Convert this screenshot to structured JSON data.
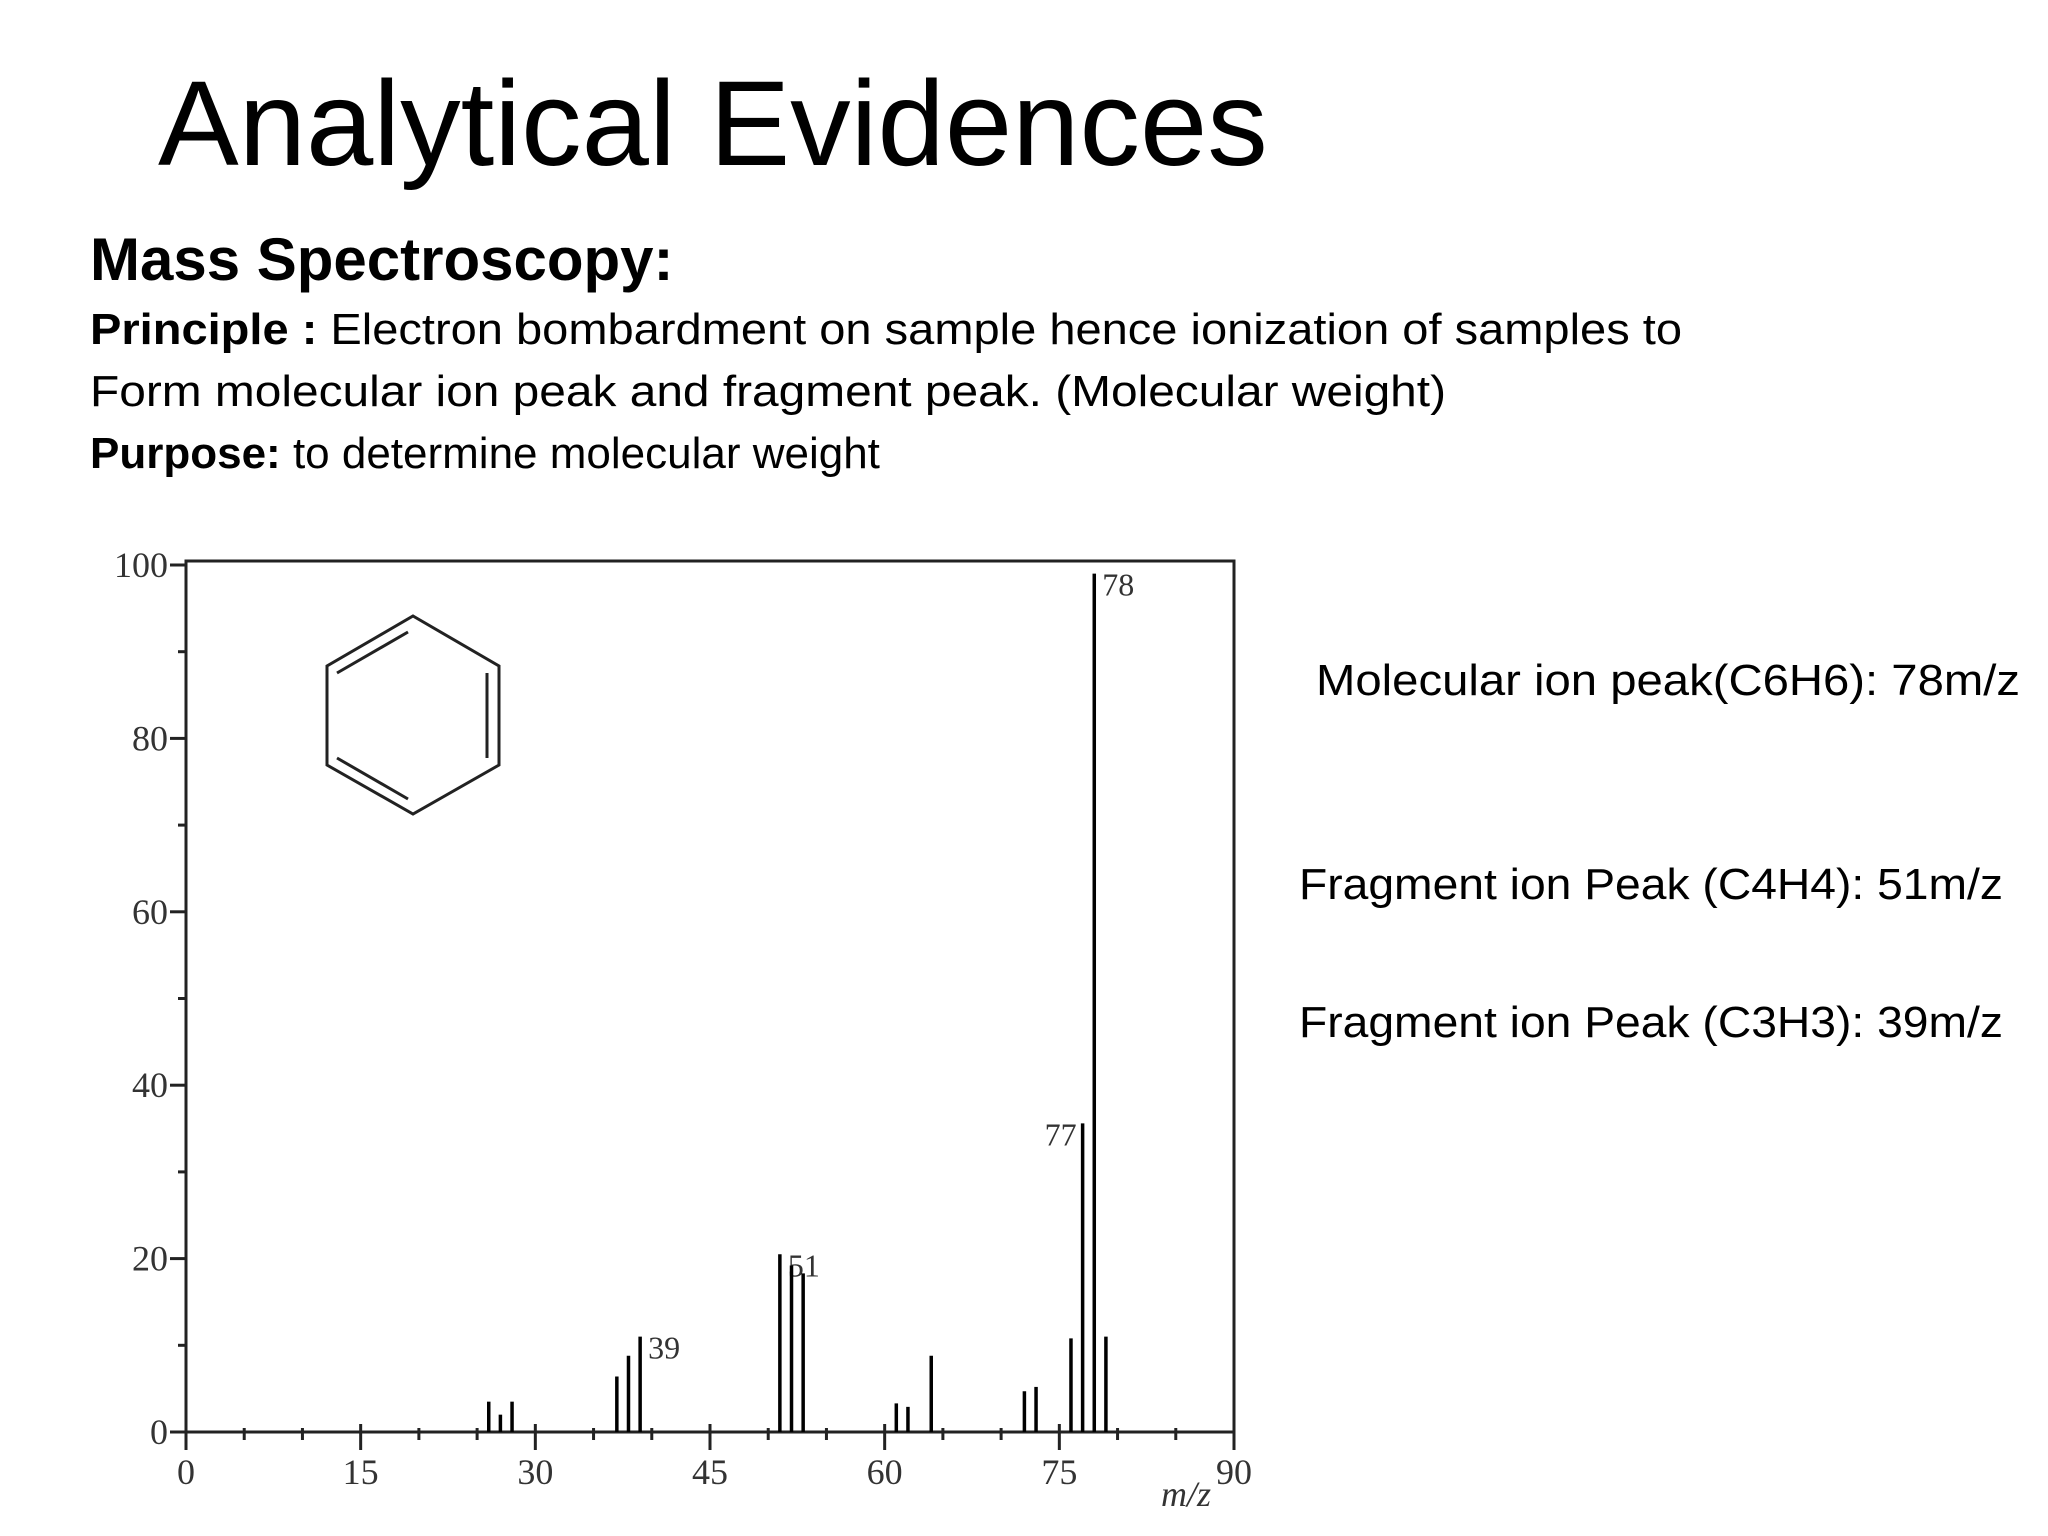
{
  "title": "Analytical Evidences",
  "section": "Mass Spectroscopy:",
  "principle": {
    "label": "Principle :",
    "text": "Electron bombardment on sample hence ionization of samples to",
    "text2": "Form molecular ion peak and fragment peak. (Molecular weight)"
  },
  "purpose": {
    "label": "Purpose:",
    "text": "to determine  molecular weight"
  },
  "annotations": [
    "Molecular ion peak(C6H6): 78m/z",
    "Fragment ion Peak (C4H4): 51m/z",
    "Fragment ion Peak (C3H3): 39m/z"
  ],
  "chart_data": {
    "type": "stem",
    "x_label": "m/z",
    "x": [
      26,
      27,
      28,
      37,
      38,
      39,
      51,
      52,
      53,
      61,
      62,
      64,
      72,
      73,
      76,
      77,
      78,
      79
    ],
    "values": [
      3.5,
      2,
      3.5,
      6.4,
      8.8,
      11,
      20.5,
      19.2,
      18.3,
      3.3,
      2.9,
      8.8,
      4.7,
      5.2,
      10.8,
      35.6,
      99,
      11
    ],
    "peak_labels": [
      null,
      null,
      null,
      null,
      null,
      "39",
      "51",
      null,
      null,
      null,
      null,
      null,
      null,
      null,
      null,
      "77",
      "78",
      null
    ],
    "color": "#000000",
    "xlim": [
      0,
      90
    ],
    "xticks": [
      0,
      15,
      30,
      45,
      60,
      75,
      90
    ],
    "xminorticks": [
      5,
      10,
      20,
      25,
      35,
      40,
      50,
      55,
      65,
      70,
      80,
      85
    ],
    "ylim": [
      0,
      100
    ],
    "yticks": [
      0,
      20,
      40,
      60,
      80,
      100
    ],
    "yminorticks": [
      10,
      30,
      50,
      70,
      90
    ]
  }
}
